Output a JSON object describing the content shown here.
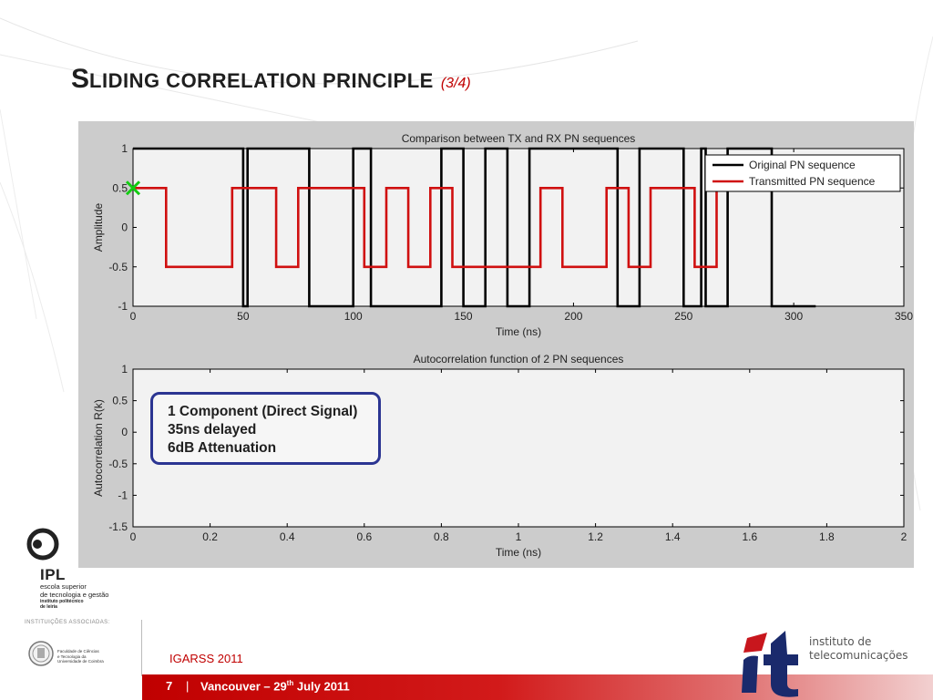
{
  "slide": {
    "title_big1": "S",
    "title_small1": "LIDING CORRELATION PRINCIPLE",
    "title_sub": "(3/4)",
    "annotation": [
      "1 Component (Direct Signal)",
      "35ns delayed",
      "6dB Attenuation"
    ],
    "colors": {
      "accent_red": "#c00000",
      "annotation_border": "#2b3592",
      "figure_bg": "#cccccc"
    }
  },
  "footer": {
    "conference": "IGARSS 2011",
    "slide_number": "7",
    "separator": "|",
    "venue_prefix": "Vancouver – 29",
    "venue_sup": "th",
    "venue_suffix": " July 2011",
    "ipl_name": "IPL",
    "ipl_sub1": "escola superior",
    "ipl_sub2": "de tecnologia e gestão",
    "ipl_sub3": "instituto politécnico",
    "ipl_sub4": "de leiria",
    "associated_label": "INSTITUIÇÕES ASSOCIADAS:",
    "uc_text": [
      "Faculdade de Ciências",
      "e Tecnologia da",
      "Universidade de Coimbra"
    ],
    "it_line1": "instituto de",
    "it_line2": "telecomunicações"
  },
  "chart_data": [
    {
      "type": "line",
      "title": "Comparison between TX and RX PN sequences",
      "xlabel": "Time (ns)",
      "ylabel": "Amplitude",
      "xlim": [
        0,
        350
      ],
      "ylim": [
        -1,
        1
      ],
      "xticks": [
        0,
        50,
        100,
        150,
        200,
        250,
        300,
        350
      ],
      "xtick_labels": [
        "0",
        "50",
        "100",
        "150",
        "200",
        "250",
        "300",
        "350"
      ],
      "yticks": [
        -1,
        -0.5,
        0,
        0.5,
        1
      ],
      "ytick_labels": [
        "-1",
        "-0.5",
        "0",
        "0.5",
        "1"
      ],
      "grid": false,
      "legend_position": "top-right",
      "series": [
        {
          "name": "Original PN sequence",
          "color": "#000000",
          "x": [
            0,
            50,
            50,
            52,
            52,
            80,
            80,
            100,
            100,
            108,
            108,
            140,
            140,
            150,
            150,
            160,
            160,
            170,
            170,
            180,
            180,
            220,
            220,
            230,
            230,
            250,
            250,
            258,
            258,
            260,
            260,
            270,
            270,
            290,
            290,
            310
          ],
          "y": [
            1,
            1,
            -1,
            -1,
            1,
            1,
            -1,
            -1,
            1,
            1,
            -1,
            -1,
            1,
            1,
            -1,
            -1,
            1,
            1,
            -1,
            -1,
            1,
            1,
            -1,
            -1,
            1,
            1,
            -1,
            -1,
            1,
            1,
            -1,
            -1,
            1,
            1,
            -1,
            -1
          ]
        },
        {
          "name": "Transmitted PN sequence",
          "color": "#d01010",
          "x": [
            0,
            15,
            15,
            45,
            45,
            65,
            65,
            75,
            75,
            105,
            105,
            115,
            115,
            125,
            125,
            135,
            135,
            145,
            145,
            185,
            185,
            195,
            195,
            215,
            215,
            225,
            225,
            235,
            235,
            255,
            255,
            265,
            265,
            275
          ],
          "y": [
            0.5,
            0.5,
            -0.5,
            -0.5,
            0.5,
            0.5,
            -0.5,
            -0.5,
            0.5,
            0.5,
            -0.5,
            -0.5,
            0.5,
            0.5,
            -0.5,
            -0.5,
            0.5,
            0.5,
            -0.5,
            -0.5,
            0.5,
            0.5,
            -0.5,
            -0.5,
            0.5,
            0.5,
            -0.5,
            -0.5,
            0.5,
            0.5,
            -0.5,
            -0.5,
            0.5,
            0.5
          ]
        }
      ],
      "markers": [
        {
          "x": 0,
          "y": 0.5,
          "shape": "x",
          "color": "#11cc11"
        }
      ]
    },
    {
      "type": "line",
      "title": "Autocorrelation function of 2 PN sequences",
      "xlabel": "Time (ns)",
      "ylabel": "Autocorrelation R(k)",
      "xlim": [
        0,
        2
      ],
      "ylim": [
        -1.5,
        1
      ],
      "xticks": [
        0,
        0.2,
        0.4,
        0.6,
        0.8,
        1,
        1.2,
        1.4,
        1.6,
        1.8,
        2
      ],
      "xtick_labels": [
        "0",
        "0.2",
        "0.4",
        "0.6",
        "0.8",
        "1",
        "1.2",
        "1.4",
        "1.6",
        "1.8",
        "2"
      ],
      "yticks": [
        -1.5,
        -1,
        -0.5,
        0,
        0.5,
        1
      ],
      "ytick_labels": [
        "-1.5",
        "-1",
        "-0.5",
        "0",
        "0.5",
        "1"
      ],
      "grid": false,
      "series": []
    }
  ]
}
